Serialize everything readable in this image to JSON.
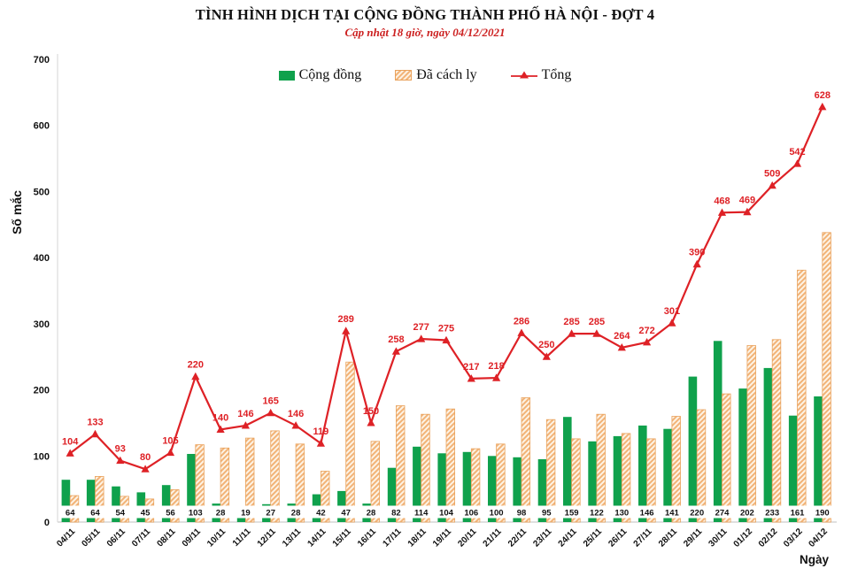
{
  "header": {
    "title": "TÌNH HÌNH DỊCH TẠI CỘNG ĐỒNG THÀNH PHỐ HÀ NỘI - ĐỢT 4",
    "subtitle": "Cập nhật 18 giờ, ngày 04/12/2021"
  },
  "legend": {
    "items": [
      {
        "label": "Cộng đồng",
        "marker": "green-solid-square"
      },
      {
        "label": "Đã cách ly",
        "marker": "orange-hatched-square"
      },
      {
        "label": "Tổng",
        "marker": "red-line-with-triangle"
      }
    ]
  },
  "colors": {
    "community_green": "#0fa14c",
    "quarantine_stripe": "#f2b377",
    "quarantine_bg": "#fdf3e5",
    "quarantine_border": "#e9a25c",
    "total_red": "#de2126",
    "axis_gray": "#d6d6d6",
    "subtitle_red": "#cc2020"
  },
  "chart_data": {
    "type": "combo-bar-line",
    "title": "TÌNH HÌNH DỊCH TẠI CỘNG ĐỒNG THÀNH PHỐ HÀ NỘI - ĐỢT 4",
    "subtitle": "Cập nhật 18 giờ, ngày 04/12/2021",
    "xlabel": "Ngày",
    "ylabel": "Số mắc",
    "ylim": [
      0,
      700
    ],
    "yticks": [
      0,
      100,
      200,
      300,
      400,
      500,
      600,
      700
    ],
    "grid": false,
    "legend_position": "top-center",
    "categories": [
      "04/11",
      "05/11",
      "06/11",
      "07/11",
      "08/11",
      "09/11",
      "10/11",
      "11/11",
      "12/11",
      "13/11",
      "14/11",
      "15/11",
      "16/11",
      "17/11",
      "18/11",
      "19/11",
      "20/11",
      "21/11",
      "22/11",
      "23/11",
      "24/11",
      "25/11",
      "26/11",
      "27/11",
      "28/11",
      "29/11",
      "30/11",
      "01/12",
      "02/12",
      "03/12",
      "04/12"
    ],
    "series": [
      {
        "name": "Cộng đồng",
        "type": "bar",
        "color": "#0fa14c",
        "values": [
          64,
          64,
          54,
          45,
          56,
          103,
          28,
          19,
          27,
          28,
          42,
          47,
          28,
          82,
          114,
          104,
          106,
          100,
          98,
          95,
          159,
          122,
          130,
          146,
          141,
          220,
          274,
          202,
          233,
          161,
          190
        ],
        "labels_shown": "at-bar-base"
      },
      {
        "name": "Đã cách ly",
        "type": "bar",
        "style": "diagonal-hatch",
        "values": [
          40,
          69,
          39,
          35,
          49,
          117,
          112,
          127,
          138,
          118,
          77,
          242,
          122,
          176,
          163,
          171,
          111,
          118,
          188,
          155,
          126,
          163,
          134,
          126,
          160,
          170,
          194,
          267,
          276,
          381,
          438
        ],
        "note": "heights read from chart; equal Tổng minus Cộng đồng, no numeric labels drawn"
      },
      {
        "name": "Tổng",
        "type": "line",
        "color": "#de2126",
        "marker": "triangle-up",
        "values": [
          104,
          133,
          93,
          80,
          105,
          220,
          140,
          146,
          165,
          146,
          119,
          289,
          150,
          258,
          277,
          275,
          217,
          218,
          286,
          250,
          285,
          285,
          264,
          272,
          301,
          390,
          468,
          469,
          509,
          542,
          628
        ],
        "labels_shown": "above-points"
      }
    ]
  }
}
